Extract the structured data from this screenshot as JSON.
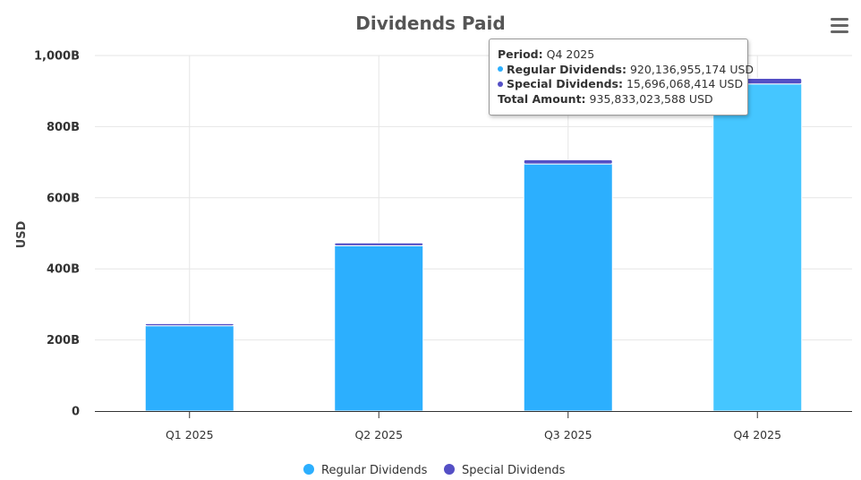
{
  "chart_data": {
    "type": "bar",
    "stacked": true,
    "title": "Dividends Paid",
    "xlabel": "",
    "ylabel": "USD",
    "ylim": [
      0,
      1000
    ],
    "ytick_values": [
      0,
      200,
      400,
      600,
      800,
      1000
    ],
    "ytick_labels": [
      "0",
      "200B",
      "400B",
      "600B",
      "800B",
      "1,000B"
    ],
    "categories": [
      "Q1 2025",
      "Q2 2025",
      "Q3 2025",
      "Q4 2025"
    ],
    "series": [
      {
        "name": "Regular Dividends",
        "color": "#2caffe",
        "values": [
          240,
          465,
          695,
          920.14
        ]
      },
      {
        "name": "Special Dividends",
        "color": "#544fc5",
        "values": [
          6,
          8,
          12,
          15.7
        ]
      }
    ],
    "highlight_index": 3,
    "highlight_color": "#45c6ff",
    "legend_position": "bottom-center"
  },
  "tooltip": {
    "period_label": "Period:",
    "period_value": "Q4 2025",
    "regular_label": "Regular Dividends:",
    "regular_value": "920,136,955,174 USD",
    "special_label": "Special Dividends:",
    "special_value": "15,696,068,414 USD",
    "total_label": "Total Amount:",
    "total_value": "935,833,023,588 USD"
  },
  "menu": {
    "icon": "hamburger-menu-icon"
  }
}
